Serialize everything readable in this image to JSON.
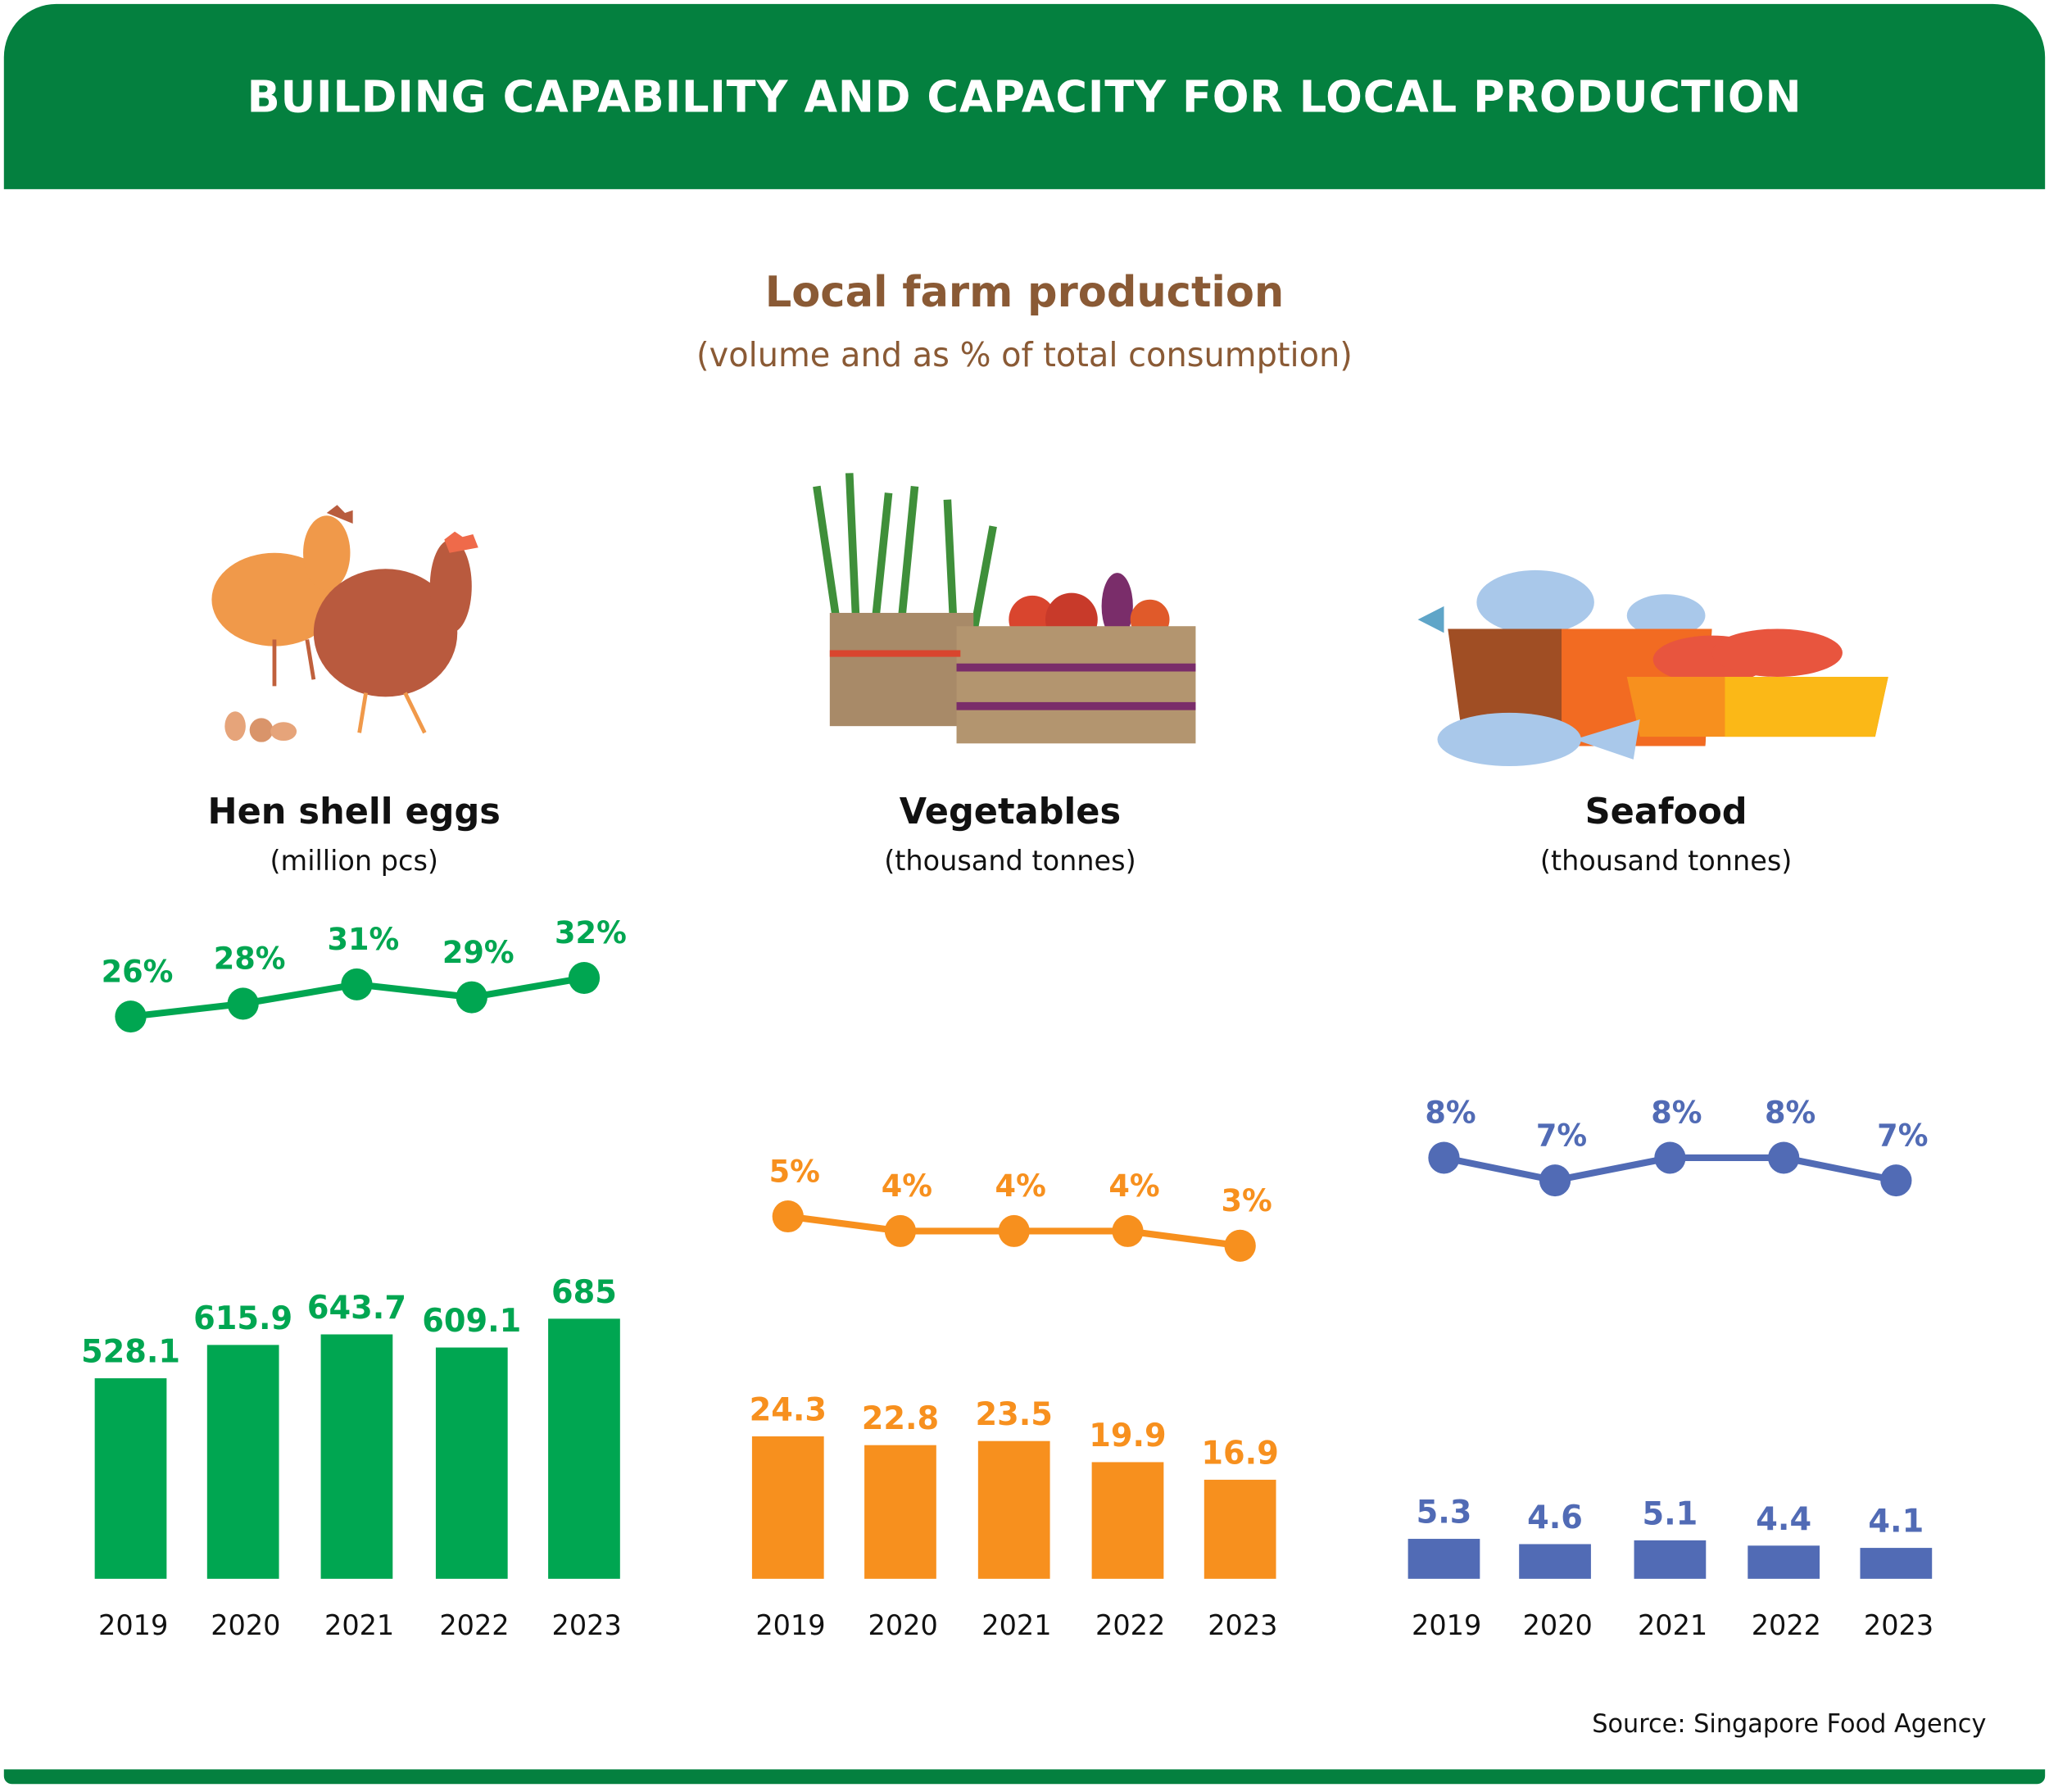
{
  "header": {
    "title": "BUILDING CAPABILITY AND CAPACITY FOR LOCAL PRODUCTION"
  },
  "main": {
    "title": "Local farm production",
    "subtitle": "(volume and as % of total consumption)"
  },
  "source": "Source: Singapore Food Agency",
  "colors": {
    "header": "#04803f",
    "eggs": "#00a651",
    "vegetables": "#f7901e",
    "seafood": "#516bb5",
    "title": "#8a5a35"
  },
  "categories": [
    {
      "title": "Hen shell eggs",
      "unit": "(million pcs)",
      "icon": "chicken-icon"
    },
    {
      "title": "Vegetables",
      "unit": "(thousand tonnes)",
      "icon": "vegetable-crate-icon"
    },
    {
      "title": "Seafood",
      "unit": "(thousand tonnes)",
      "icon": "seafood-basket-icon"
    }
  ],
  "chart_data": [
    {
      "type": "bar+line",
      "name": "Hen shell eggs",
      "categories": [
        "2019",
        "2020",
        "2021",
        "2022",
        "2023"
      ],
      "volume": [
        528.1,
        615.9,
        643.7,
        609.1,
        685
      ],
      "volume_labels": [
        "528.1",
        "615.9",
        "643.7",
        "609.1",
        "685"
      ],
      "share_pct": [
        26,
        28,
        31,
        29,
        32
      ],
      "share_labels": [
        "26%",
        "28%",
        "31%",
        "29%",
        "32%"
      ],
      "color": "#00a651"
    },
    {
      "type": "bar+line",
      "name": "Vegetables",
      "categories": [
        "2019",
        "2020",
        "2021",
        "2022",
        "2023"
      ],
      "volume": [
        24.3,
        22.8,
        23.5,
        19.9,
        16.9
      ],
      "volume_labels": [
        "24.3",
        "22.8",
        "23.5",
        "19.9",
        "16.9"
      ],
      "share_pct": [
        5,
        4,
        4,
        4,
        3
      ],
      "share_labels": [
        "5%",
        "4%",
        "4%",
        "4%",
        "3%"
      ],
      "color": "#f7901e"
    },
    {
      "type": "bar+line",
      "name": "Seafood",
      "categories": [
        "2019",
        "2020",
        "2021",
        "2022",
        "2023"
      ],
      "volume": [
        5.3,
        4.6,
        5.1,
        4.4,
        4.1
      ],
      "volume_labels": [
        "5.3",
        "4.6",
        "5.1",
        "4.4",
        "4.1"
      ],
      "share_pct": [
        8,
        7,
        8,
        8,
        7
      ],
      "share_labels": [
        "8%",
        "7%",
        "8%",
        "8%",
        "7%"
      ],
      "color": "#516bb5"
    }
  ]
}
